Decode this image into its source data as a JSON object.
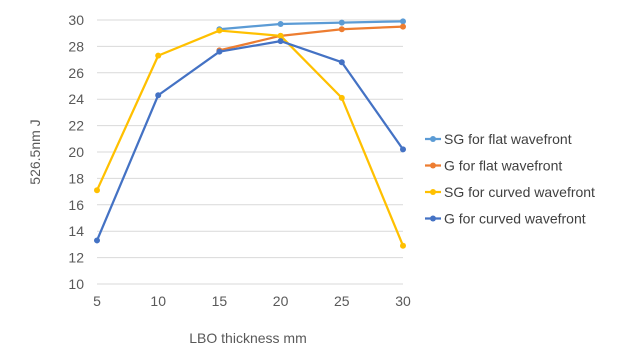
{
  "chart_data": {
    "type": "line",
    "xlabel": "LBO thickness  mm",
    "ylabel": "526.5nm  J",
    "x": [
      5,
      10,
      15,
      20,
      25,
      30
    ],
    "xlim": [
      5,
      30
    ],
    "ylim": [
      10,
      30
    ],
    "y_ticks": [
      10,
      12,
      14,
      16,
      18,
      20,
      22,
      24,
      26,
      28,
      30
    ],
    "grid": true,
    "legend_position": "right",
    "series": [
      {
        "name": "SG for flat wavefront",
        "color": "#5b9bd5",
        "values": [
          null,
          null,
          29.3,
          29.7,
          29.8,
          29.9
        ]
      },
      {
        "name": "G for flat wavefront",
        "color": "#ed7d31",
        "values": [
          null,
          null,
          27.7,
          28.8,
          29.3,
          29.5
        ]
      },
      {
        "name": "SG for curved wavefront",
        "color": "#ffc000",
        "values": [
          17.1,
          27.3,
          29.2,
          28.8,
          24.1,
          12.9
        ]
      },
      {
        "name": "G for curved wavefront",
        "color": "#4472c4",
        "values": [
          13.3,
          24.3,
          27.6,
          28.4,
          26.8,
          20.2
        ]
      }
    ]
  }
}
